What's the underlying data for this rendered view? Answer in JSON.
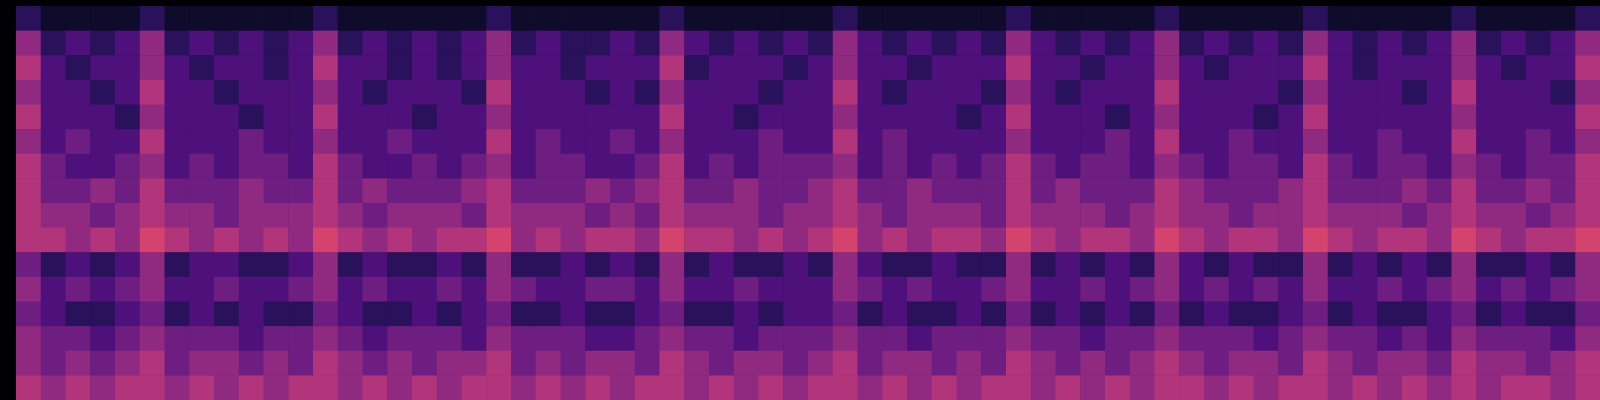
{
  "chart_data": {
    "type": "heatmap",
    "color": "magma",
    "color_range": [
      0,
      10
    ],
    "tick_labels": false,
    "cells": [
      [
        2,
        1,
        1,
        1,
        1,
        2,
        1,
        1,
        1,
        1,
        1,
        1,
        2,
        1,
        1,
        1,
        1,
        1,
        1,
        2,
        1,
        1,
        1,
        1,
        1,
        1,
        2,
        1,
        1,
        1,
        1,
        1,
        1,
        2,
        1,
        1,
        1,
        1,
        1,
        1,
        2,
        1,
        1,
        1,
        1,
        1,
        2,
        1,
        1,
        1,
        1,
        1,
        2,
        1,
        1,
        1,
        1,
        1,
        2,
        1,
        1,
        1,
        1,
        2
      ],
      [
        5,
        2,
        3,
        2,
        3,
        5,
        2,
        3,
        2,
        3,
        2,
        3,
        5,
        2,
        3,
        2,
        3,
        2,
        3,
        5,
        2,
        3,
        2,
        2,
        3,
        2,
        5,
        3,
        2,
        3,
        2,
        3,
        2,
        5,
        3,
        2,
        3,
        2,
        3,
        2,
        5,
        3,
        2,
        3,
        2,
        3,
        5,
        2,
        3,
        2,
        3,
        2,
        5,
        3,
        2,
        3,
        2,
        3,
        5,
        2,
        3,
        2,
        3,
        5
      ],
      [
        6,
        3,
        2,
        3,
        3,
        5,
        3,
        2,
        3,
        3,
        2,
        3,
        6,
        3,
        3,
        2,
        3,
        2,
        3,
        5,
        3,
        3,
        2,
        3,
        3,
        3,
        6,
        2,
        3,
        3,
        3,
        2,
        3,
        5,
        3,
        3,
        2,
        3,
        3,
        3,
        6,
        3,
        3,
        2,
        3,
        3,
        5,
        3,
        2,
        3,
        3,
        3,
        6,
        3,
        2,
        3,
        3,
        3,
        5,
        3,
        2,
        3,
        3,
        6
      ],
      [
        5,
        3,
        3,
        2,
        3,
        6,
        3,
        3,
        2,
        3,
        3,
        3,
        5,
        3,
        2,
        3,
        3,
        3,
        2,
        6,
        3,
        3,
        3,
        2,
        3,
        2,
        5,
        3,
        3,
        3,
        2,
        3,
        3,
        6,
        3,
        2,
        3,
        3,
        3,
        2,
        5,
        3,
        2,
        3,
        3,
        3,
        6,
        3,
        3,
        3,
        3,
        2,
        5,
        3,
        3,
        3,
        2,
        3,
        6,
        3,
        3,
        3,
        2,
        5
      ],
      [
        6,
        3,
        3,
        3,
        2,
        5,
        3,
        3,
        3,
        2,
        3,
        3,
        6,
        3,
        3,
        3,
        2,
        3,
        3,
        5,
        3,
        3,
        3,
        3,
        3,
        3,
        6,
        3,
        3,
        2,
        3,
        3,
        3,
        5,
        3,
        3,
        3,
        3,
        2,
        3,
        6,
        3,
        3,
        3,
        2,
        3,
        5,
        3,
        3,
        3,
        2,
        3,
        6,
        3,
        3,
        3,
        3,
        3,
        5,
        3,
        3,
        3,
        3,
        6
      ],
      [
        5,
        3,
        4,
        3,
        3,
        6,
        3,
        3,
        3,
        4,
        3,
        3,
        5,
        3,
        3,
        4,
        3,
        3,
        3,
        6,
        3,
        4,
        3,
        3,
        4,
        3,
        5,
        3,
        3,
        3,
        4,
        3,
        3,
        6,
        3,
        4,
        3,
        3,
        3,
        3,
        5,
        3,
        3,
        3,
        4,
        3,
        6,
        3,
        3,
        4,
        3,
        3,
        5,
        3,
        3,
        4,
        3,
        3,
        6,
        3,
        3,
        4,
        3,
        5
      ],
      [
        6,
        4,
        3,
        3,
        4,
        5,
        3,
        4,
        3,
        4,
        4,
        3,
        6,
        4,
        3,
        3,
        4,
        3,
        4,
        5,
        3,
        4,
        4,
        3,
        3,
        4,
        6,
        3,
        4,
        3,
        4,
        4,
        4,
        5,
        3,
        4,
        3,
        4,
        3,
        4,
        6,
        4,
        3,
        4,
        4,
        3,
        5,
        4,
        3,
        4,
        4,
        3,
        6,
        4,
        3,
        4,
        4,
        3,
        5,
        4,
        3,
        4,
        4,
        6
      ],
      [
        6,
        4,
        4,
        5,
        4,
        6,
        4,
        4,
        4,
        5,
        4,
        4,
        6,
        4,
        5,
        4,
        4,
        4,
        5,
        6,
        4,
        4,
        4,
        5,
        4,
        5,
        6,
        4,
        4,
        5,
        4,
        4,
        5,
        6,
        4,
        4,
        5,
        4,
        4,
        4,
        6,
        4,
        5,
        4,
        4,
        4,
        6,
        5,
        4,
        4,
        4,
        5,
        6,
        4,
        4,
        4,
        5,
        4,
        6,
        4,
        4,
        5,
        4,
        6
      ],
      [
        6,
        5,
        5,
        4,
        5,
        6,
        5,
        5,
        4,
        5,
        5,
        5,
        6,
        5,
        4,
        5,
        5,
        5,
        4,
        6,
        5,
        5,
        5,
        4,
        5,
        4,
        6,
        5,
        5,
        5,
        4,
        5,
        5,
        6,
        5,
        4,
        5,
        5,
        5,
        4,
        6,
        5,
        5,
        5,
        4,
        5,
        6,
        5,
        5,
        4,
        5,
        5,
        6,
        5,
        5,
        5,
        4,
        5,
        6,
        5,
        5,
        4,
        5,
        6
      ],
      [
        6,
        6,
        5,
        6,
        5,
        7,
        6,
        5,
        6,
        5,
        6,
        5,
        7,
        6,
        5,
        6,
        5,
        6,
        6,
        7,
        5,
        6,
        5,
        6,
        6,
        5,
        7,
        6,
        6,
        5,
        6,
        5,
        6,
        7,
        5,
        6,
        5,
        6,
        6,
        5,
        7,
        6,
        5,
        6,
        6,
        5,
        7,
        6,
        5,
        6,
        6,
        5,
        7,
        6,
        5,
        6,
        6,
        5,
        7,
        6,
        5,
        6,
        6,
        7
      ],
      [
        4,
        2,
        3,
        2,
        3,
        5,
        2,
        3,
        3,
        2,
        2,
        3,
        5,
        2,
        3,
        2,
        2,
        3,
        2,
        5,
        2,
        2,
        3,
        2,
        3,
        2,
        5,
        2,
        3,
        2,
        2,
        3,
        2,
        5,
        3,
        2,
        2,
        3,
        2,
        2,
        5,
        2,
        3,
        2,
        3,
        2,
        5,
        3,
        2,
        3,
        2,
        2,
        5,
        2,
        3,
        2,
        3,
        2,
        5,
        2,
        2,
        3,
        2,
        5
      ],
      [
        5,
        3,
        4,
        3,
        4,
        5,
        3,
        3,
        4,
        3,
        3,
        4,
        5,
        3,
        4,
        3,
        3,
        4,
        3,
        5,
        4,
        3,
        3,
        4,
        4,
        3,
        5,
        3,
        3,
        4,
        3,
        3,
        3,
        5,
        4,
        3,
        4,
        3,
        3,
        4,
        5,
        3,
        3,
        4,
        3,
        4,
        5,
        3,
        4,
        3,
        4,
        3,
        5,
        3,
        3,
        4,
        3,
        4,
        5,
        3,
        4,
        3,
        4,
        5
      ],
      [
        4,
        3,
        2,
        2,
        3,
        4,
        2,
        3,
        2,
        3,
        2,
        2,
        4,
        3,
        2,
        2,
        3,
        2,
        3,
        4,
        2,
        2,
        3,
        2,
        2,
        3,
        4,
        2,
        2,
        3,
        2,
        3,
        3,
        4,
        2,
        3,
        2,
        2,
        3,
        2,
        4,
        2,
        3,
        2,
        3,
        2,
        4,
        2,
        3,
        2,
        2,
        3,
        4,
        2,
        3,
        2,
        2,
        3,
        4,
        2,
        3,
        2,
        2,
        4
      ],
      [
        5,
        4,
        4,
        3,
        4,
        5,
        4,
        4,
        4,
        3,
        4,
        4,
        5,
        4,
        3,
        4,
        4,
        4,
        3,
        5,
        4,
        4,
        4,
        3,
        3,
        4,
        5,
        4,
        4,
        3,
        4,
        4,
        4,
        5,
        4,
        4,
        3,
        4,
        4,
        4,
        5,
        4,
        4,
        3,
        4,
        4,
        5,
        4,
        4,
        4,
        3,
        4,
        5,
        4,
        4,
        3,
        4,
        3,
        5,
        4,
        4,
        4,
        3,
        5
      ],
      [
        5,
        4,
        5,
        4,
        5,
        6,
        4,
        5,
        5,
        4,
        5,
        4,
        6,
        5,
        4,
        5,
        4,
        5,
        5,
        6,
        4,
        5,
        4,
        5,
        5,
        4,
        6,
        5,
        4,
        5,
        5,
        4,
        5,
        6,
        4,
        5,
        5,
        4,
        5,
        4,
        6,
        5,
        4,
        5,
        4,
        5,
        6,
        5,
        4,
        5,
        5,
        4,
        6,
        5,
        4,
        5,
        5,
        4,
        6,
        5,
        5,
        4,
        5,
        6
      ],
      [
        6,
        5,
        6,
        5,
        6,
        6,
        5,
        6,
        5,
        6,
        5,
        6,
        6,
        5,
        6,
        5,
        6,
        5,
        6,
        6,
        5,
        6,
        5,
        6,
        5,
        6,
        6,
        5,
        6,
        5,
        6,
        5,
        6,
        6,
        5,
        6,
        5,
        6,
        5,
        6,
        6,
        5,
        6,
        5,
        6,
        5,
        6,
        6,
        5,
        6,
        5,
        6,
        6,
        5,
        6,
        5,
        6,
        5,
        6,
        5,
        6,
        6,
        5,
        6
      ]
    ]
  }
}
